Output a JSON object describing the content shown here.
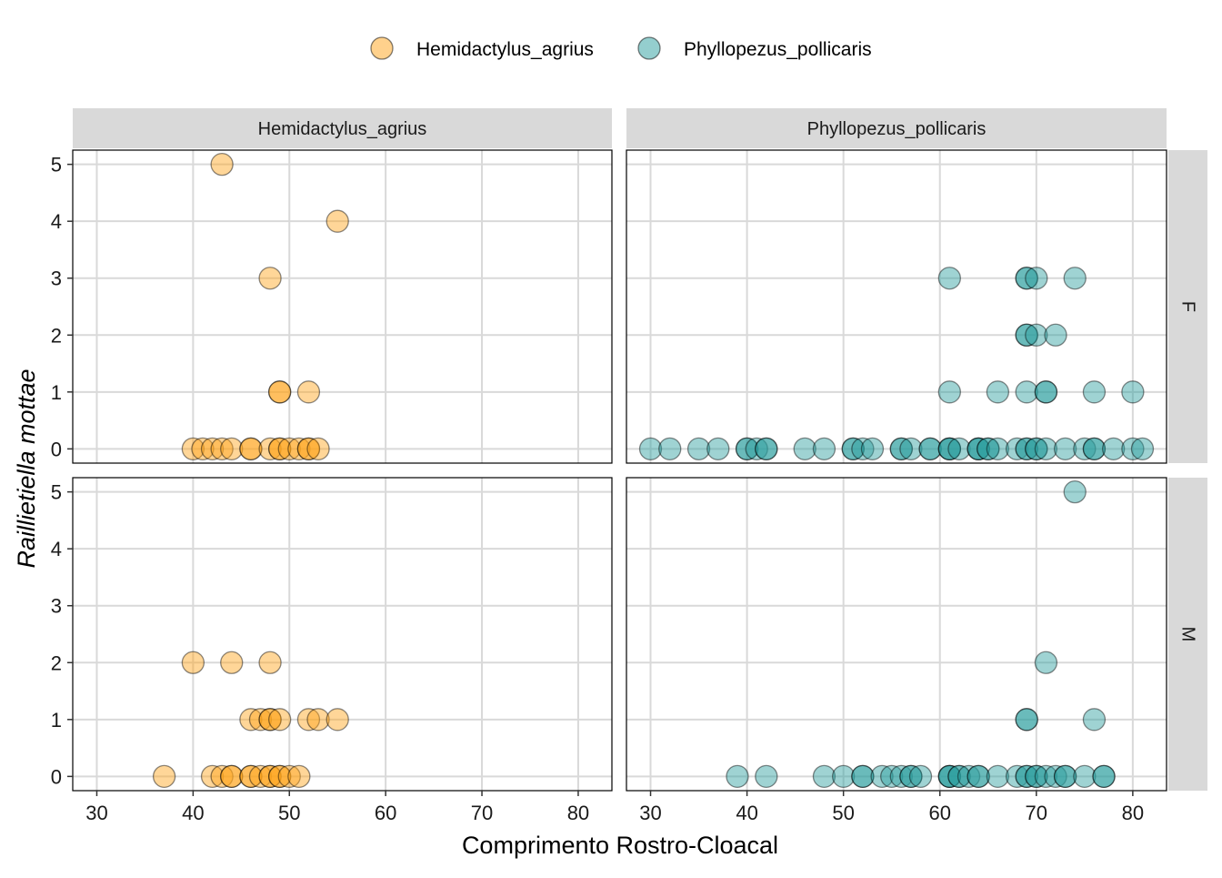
{
  "chart_data": {
    "type": "scatter",
    "xlabel": "Comprimento Rostro-Cloacal",
    "ylabel": "Raillietiella mottae",
    "xlim": [
      27.5,
      83.5
    ],
    "ylim": [
      -0.25,
      5.25
    ],
    "x_ticks": [
      30,
      40,
      50,
      60,
      70,
      80
    ],
    "y_ticks": [
      0,
      1,
      2,
      3,
      4,
      5
    ],
    "grid": true,
    "legend_position": "top",
    "facet_columns": [
      "Hemidactylus_agrius",
      "Phyllopezus_pollicaris"
    ],
    "facet_rows": [
      "F",
      "M"
    ],
    "colors": {
      "Hemidactylus_agrius": "#FFA31A",
      "Phyllopezus_pollicaris": "#2A9D9D",
      "strip_background": "#D9D9D9",
      "grid": "#D9D9D9",
      "point_outline": "#000000"
    },
    "legend": [
      {
        "name": "Hemidactylus_agrius",
        "color": "#FFA31A"
      },
      {
        "name": "Phyllopezus_pollicaris",
        "color": "#2A9D9D"
      }
    ],
    "panels": [
      {
        "column": "Hemidactylus_agrius",
        "row": "F",
        "series": "Hemidactylus_agrius",
        "points": [
          [
            43,
            5
          ],
          [
            55,
            4
          ],
          [
            48,
            3
          ],
          [
            49,
            1
          ],
          [
            49,
            1
          ],
          [
            52,
            1
          ],
          [
            40,
            0
          ],
          [
            41,
            0
          ],
          [
            42,
            0
          ],
          [
            43,
            0
          ],
          [
            44,
            0
          ],
          [
            46,
            0
          ],
          [
            46,
            0
          ],
          [
            48,
            0
          ],
          [
            49,
            0
          ],
          [
            49,
            0
          ],
          [
            50,
            0
          ],
          [
            51,
            0
          ],
          [
            52,
            0
          ],
          [
            52,
            0
          ],
          [
            53,
            0
          ]
        ]
      },
      {
        "column": "Phyllopezus_pollicaris",
        "row": "F",
        "series": "Phyllopezus_pollicaris",
        "points": [
          [
            61,
            3
          ],
          [
            69,
            3
          ],
          [
            69,
            3
          ],
          [
            70,
            3
          ],
          [
            74,
            3
          ],
          [
            69,
            2
          ],
          [
            69,
            2
          ],
          [
            70,
            2
          ],
          [
            72,
            2
          ],
          [
            61,
            1
          ],
          [
            66,
            1
          ],
          [
            69,
            1
          ],
          [
            71,
            1
          ],
          [
            71,
            1
          ],
          [
            76,
            1
          ],
          [
            80,
            1
          ],
          [
            30,
            0
          ],
          [
            32,
            0
          ],
          [
            35,
            0
          ],
          [
            37,
            0
          ],
          [
            40,
            0
          ],
          [
            40,
            0
          ],
          [
            41,
            0
          ],
          [
            42,
            0
          ],
          [
            42,
            0
          ],
          [
            46,
            0
          ],
          [
            48,
            0
          ],
          [
            51,
            0
          ],
          [
            51,
            0
          ],
          [
            52,
            0
          ],
          [
            53,
            0
          ],
          [
            56,
            0
          ],
          [
            56,
            0
          ],
          [
            57,
            0
          ],
          [
            59,
            0
          ],
          [
            59,
            0
          ],
          [
            61,
            0
          ],
          [
            61,
            0
          ],
          [
            61,
            0
          ],
          [
            62,
            0
          ],
          [
            64,
            0
          ],
          [
            64,
            0
          ],
          [
            64,
            0
          ],
          [
            65,
            0
          ],
          [
            65,
            0
          ],
          [
            66,
            0
          ],
          [
            68,
            0
          ],
          [
            69,
            0
          ],
          [
            69,
            0
          ],
          [
            70,
            0
          ],
          [
            70,
            0
          ],
          [
            71,
            0
          ],
          [
            73,
            0
          ],
          [
            75,
            0
          ],
          [
            76,
            0
          ],
          [
            76,
            0
          ],
          [
            78,
            0
          ],
          [
            80,
            0
          ],
          [
            81,
            0
          ]
        ]
      },
      {
        "column": "Hemidactylus_agrius",
        "row": "M",
        "series": "Hemidactylus_agrius",
        "points": [
          [
            40,
            2
          ],
          [
            44,
            2
          ],
          [
            48,
            2
          ],
          [
            46,
            1
          ],
          [
            47,
            1
          ],
          [
            48,
            1
          ],
          [
            48,
            1
          ],
          [
            49,
            1
          ],
          [
            52,
            1
          ],
          [
            53,
            1
          ],
          [
            55,
            1
          ],
          [
            37,
            0
          ],
          [
            42,
            0
          ],
          [
            43,
            0
          ],
          [
            44,
            0
          ],
          [
            44,
            0
          ],
          [
            46,
            0
          ],
          [
            46,
            0
          ],
          [
            47,
            0
          ],
          [
            48,
            0
          ],
          [
            48,
            0
          ],
          [
            49,
            0
          ],
          [
            49,
            0
          ],
          [
            50,
            0
          ],
          [
            51,
            0
          ]
        ]
      },
      {
        "column": "Phyllopezus_pollicaris",
        "row": "M",
        "series": "Phyllopezus_pollicaris",
        "points": [
          [
            74,
            5
          ],
          [
            71,
            2
          ],
          [
            69,
            1
          ],
          [
            69,
            1
          ],
          [
            76,
            1
          ],
          [
            39,
            0
          ],
          [
            42,
            0
          ],
          [
            48,
            0
          ],
          [
            50,
            0
          ],
          [
            52,
            0
          ],
          [
            52,
            0
          ],
          [
            54,
            0
          ],
          [
            55,
            0
          ],
          [
            56,
            0
          ],
          [
            57,
            0
          ],
          [
            57,
            0
          ],
          [
            58,
            0
          ],
          [
            61,
            0
          ],
          [
            61,
            0
          ],
          [
            61,
            0
          ],
          [
            62,
            0
          ],
          [
            62,
            0
          ],
          [
            63,
            0
          ],
          [
            64,
            0
          ],
          [
            64,
            0
          ],
          [
            66,
            0
          ],
          [
            68,
            0
          ],
          [
            69,
            0
          ],
          [
            69,
            0
          ],
          [
            70,
            0
          ],
          [
            70,
            0
          ],
          [
            71,
            0
          ],
          [
            72,
            0
          ],
          [
            73,
            0
          ],
          [
            73,
            0
          ],
          [
            75,
            0
          ],
          [
            77,
            0
          ],
          [
            77,
            0
          ]
        ]
      }
    ]
  }
}
